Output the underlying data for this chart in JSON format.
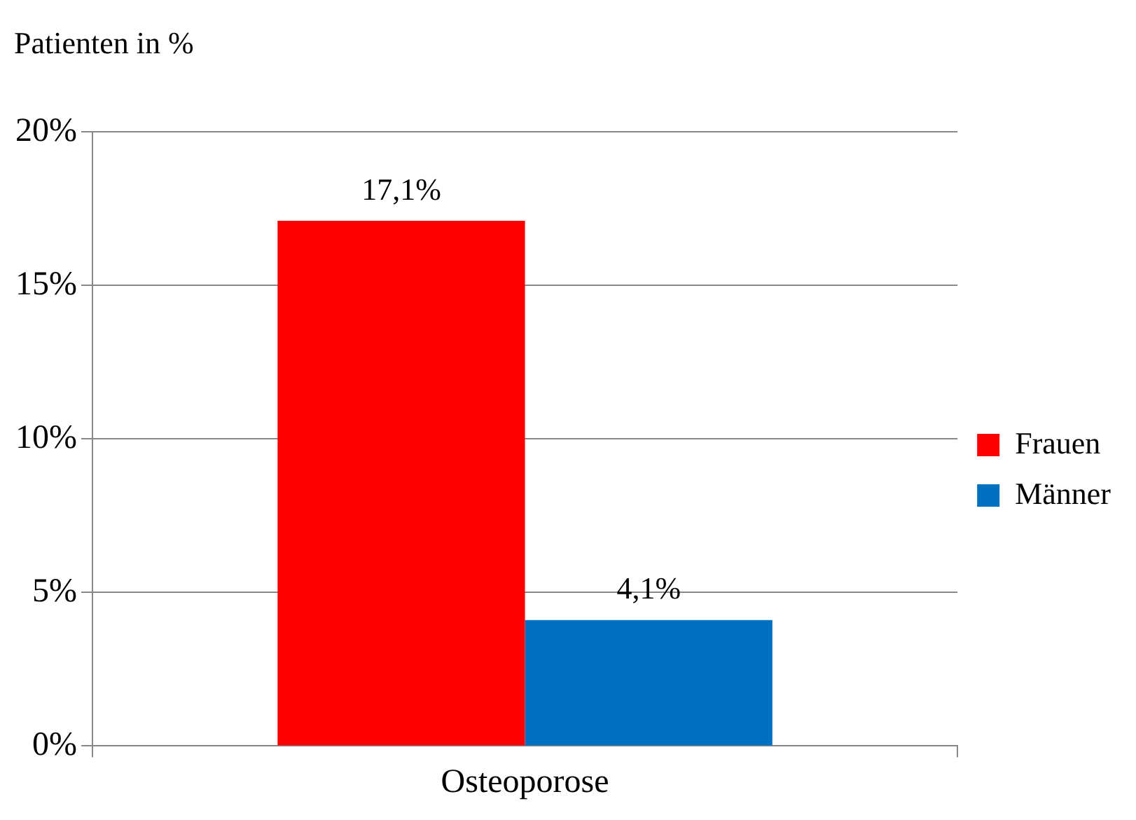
{
  "chart_data": {
    "type": "bar",
    "ylabel": "Patienten in %",
    "categories": [
      "Osteoporose"
    ],
    "series": [
      {
        "name": "Frauen",
        "color": "#ff0000",
        "values": [
          17.1
        ],
        "value_labels": [
          "17,1%"
        ]
      },
      {
        "name": "Männer",
        "color": "#0070c0",
        "values": [
          4.1
        ],
        "value_labels": [
          "4,1%"
        ]
      }
    ],
    "ylim": [
      0,
      20
    ],
    "yticks": [
      {
        "value": 0,
        "label": "0%"
      },
      {
        "value": 5,
        "label": "5%"
      },
      {
        "value": 10,
        "label": "10%"
      },
      {
        "value": 15,
        "label": "15%"
      },
      {
        "value": 20,
        "label": "20%"
      }
    ],
    "grid": "y",
    "legend": "right"
  }
}
